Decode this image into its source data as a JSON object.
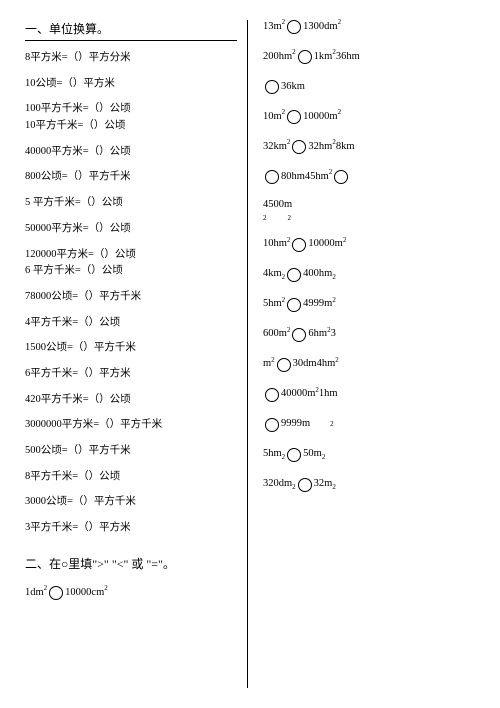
{
  "left": {
    "title": "一、单位换算。",
    "items": [
      "8平方米=（）平方分米",
      "10公顷=（）平方米",
      "100平方千米=（）公顷",
      "10平方千米=（）公顷",
      "40000平方米=（）公顷",
      "800公顷=（）平方千米",
      "5 平方千米=（）公顷",
      "50000平方米=（）公顷",
      "120000平方米=（）公顷",
      "6 平方千米=（）公顷",
      "78000公顷=（）平方千米",
      "4平方千米=（）公顷",
      "1500公顷=（）平方千米",
      "6平方千米=（）平方米",
      "420平方千米=（）公顷",
      "3000000平方米=（）平方千米",
      "500公顷=（）平方千米",
      "8平方千米=（）公顷",
      "3000公顷=（）平方千米",
      "3平方千米=（）平方米"
    ],
    "section2_title": "二、在○里填\">\" \"<\" 或 \"=\"。",
    "compare_last": {
      "a": "1dm",
      "a_sup": "2",
      "b": "10000cm",
      "b_sup": "2"
    }
  },
  "right": {
    "items": [
      {
        "a": "13m",
        "a_sup": "2",
        "b": "1300dm",
        "b_sup": "2"
      },
      {
        "a": "200hm",
        "a_sup": "2",
        "b": "1km",
        "b_sup": "2",
        "tail": "36hm",
        "tail_sup": ""
      },
      {
        "pre": "",
        "b": "36km",
        "b_sup": "",
        "pre_only": true,
        "top_sup": "2     2"
      },
      {
        "a": "10m",
        "a_sup": "2",
        "b": "10000m",
        "b_sup": "2"
      },
      {
        "a": "32km",
        "a_sup": "2",
        "b": "32hm",
        "b_sup": "2",
        "tail": "8km",
        "tail_sup": ""
      },
      {
        "pre": "",
        "a": "",
        "b": "80hm45hm",
        "b_sup": "2",
        "tail_circle": true,
        "pre_only": true
      },
      {
        "plain": "4500m",
        "top_sup_after": "2            2"
      },
      {
        "a": "10hm",
        "a_sup": "2",
        "b": "10000m",
        "b_sup": "2"
      },
      {
        "a": "4km",
        "a_sub": "2",
        "b": "400hm",
        "b_sub": "2"
      },
      {
        "a": "5hm",
        "a_sup": "2",
        "b": "4999m",
        "b_sup": "2"
      },
      {
        "a": "600m",
        "a_sup": "2",
        "b": "6hm",
        "b_sup": "2",
        "tail": "3"
      },
      {
        "a": "m",
        "a_sup": "2",
        "b": "30dm4hm",
        "b_sup": "2"
      },
      {
        "pre": "",
        "b": "40000m",
        "b_sup": "2",
        "tail": "1hm",
        "pre_only": true
      },
      {
        "pre": "",
        "b": "9999m",
        "b_sup": "",
        "pre_only": true,
        "tail_sup_only": "2"
      },
      {
        "a": "5hm",
        "a_sub": "2",
        "b": "50m",
        "b_sub": "2"
      },
      {
        "a": "320dm",
        "a_sub": "2",
        "b": "32m",
        "b_sub": "2"
      }
    ]
  }
}
